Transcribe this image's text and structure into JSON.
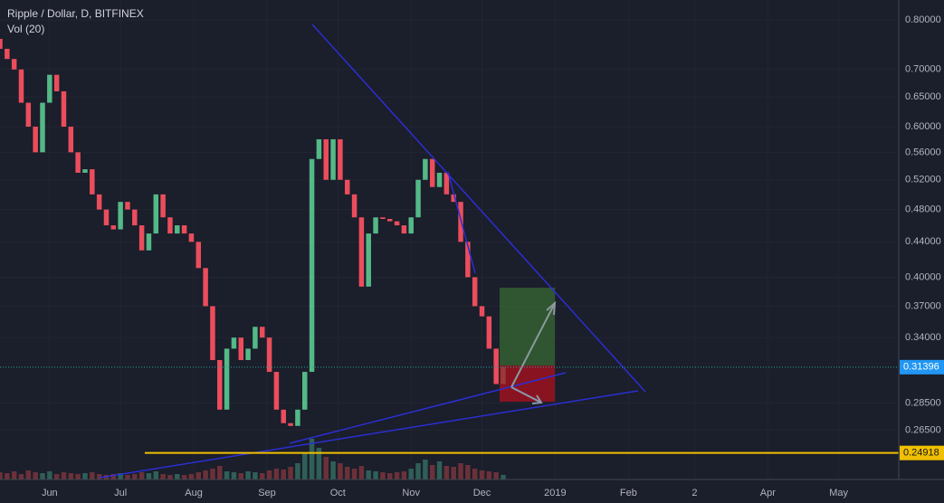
{
  "chart_data": {
    "type": "candlestick",
    "title": "Ripple / Dollar, D, BITFINEX",
    "subtitle": "Vol (20)",
    "log_scale": true,
    "up_color": "#53b987",
    "down_color": "#eb4d5c",
    "volume_up_color": "#2f5f57",
    "volume_down_color": "#6b3139",
    "categories": [
      null,
      null,
      null,
      null,
      null,
      null,
      null,
      null,
      null,
      null,
      null,
      null,
      null,
      null,
      null,
      null,
      null,
      null,
      null,
      null,
      null,
      null,
      null,
      null,
      null,
      null,
      null,
      null,
      null,
      null,
      null,
      null,
      null,
      null,
      null,
      null,
      null,
      null,
      null,
      null,
      null,
      null,
      null,
      null,
      null,
      null,
      null,
      null,
      null,
      null,
      null,
      null,
      null,
      null,
      null,
      null,
      null,
      null,
      null,
      null,
      null,
      null,
      null,
      null,
      null,
      null,
      null,
      null,
      null,
      null,
      null,
      null
    ],
    "open": 0.76,
    "values": [
      0.74,
      0.72,
      0.7,
      0.64,
      0.6,
      0.56,
      0.64,
      0.69,
      0.66,
      0.6,
      0.56,
      0.53,
      0.535,
      0.5,
      0.48,
      0.46,
      0.455,
      0.49,
      0.48,
      0.46,
      0.43,
      0.45,
      0.5,
      0.47,
      0.45,
      0.46,
      0.45,
      0.44,
      0.41,
      0.37,
      0.32,
      0.28,
      0.33,
      0.34,
      0.32,
      0.33,
      0.35,
      0.34,
      0.31,
      0.28,
      0.27,
      0.268,
      0.28,
      0.31,
      0.55,
      0.58,
      0.52,
      0.58,
      0.52,
      0.5,
      0.47,
      0.39,
      0.45,
      0.47,
      0.468,
      0.465,
      0.46,
      0.45,
      0.47,
      0.52,
      0.55,
      0.51,
      0.53,
      0.5,
      0.49,
      0.44,
      0.4,
      0.37,
      0.36,
      0.33,
      0.3,
      0.314
    ],
    "volumes": [
      8,
      7,
      9,
      6,
      10,
      8,
      7,
      9,
      6,
      8,
      7,
      6,
      7,
      8,
      6,
      5,
      6,
      7,
      5,
      6,
      8,
      7,
      9,
      6,
      5,
      6,
      5,
      6,
      8,
      10,
      12,
      15,
      9,
      8,
      7,
      9,
      8,
      7,
      10,
      12,
      11,
      14,
      18,
      30,
      45,
      35,
      25,
      20,
      18,
      14,
      12,
      15,
      10,
      9,
      8,
      7,
      8,
      9,
      12,
      18,
      22,
      16,
      20,
      15,
      14,
      18,
      16,
      12,
      10,
      9,
      8,
      5
    ],
    "xlim": [
      0,
      126.8
    ],
    "xticks": [
      {
        "value": 7,
        "label": "Jun"
      },
      {
        "value": 17,
        "label": "Jul"
      },
      {
        "value": 27.33,
        "label": "Aug"
      },
      {
        "value": 37.67,
        "label": "Sep"
      },
      {
        "value": 47.67,
        "label": "Oct"
      },
      {
        "value": 58,
        "label": "Nov"
      },
      {
        "value": 68,
        "label": "Dec"
      },
      {
        "value": 78.33,
        "label": "2019"
      },
      {
        "value": 88.67,
        "label": "Feb"
      },
      {
        "value": 98,
        "label": "2"
      },
      {
        "value": 108.33,
        "label": "Apr"
      },
      {
        "value": 118.33,
        "label": "May"
      }
    ],
    "ylim": [
      0.232,
      0.844
    ],
    "yticks": [
      {
        "value": 0.8,
        "label": "0.80000"
      },
      {
        "value": 0.7,
        "label": "0.70000"
      },
      {
        "value": 0.65,
        "label": "0.65000"
      },
      {
        "value": 0.6,
        "label": "0.60000"
      },
      {
        "value": 0.56,
        "label": "0.56000"
      },
      {
        "value": 0.52,
        "label": "0.52000"
      },
      {
        "value": 0.48,
        "label": "0.48000"
      },
      {
        "value": 0.44,
        "label": "0.44000"
      },
      {
        "value": 0.4,
        "label": "0.40000"
      },
      {
        "value": 0.37,
        "label": "0.37000"
      },
      {
        "value": 0.34,
        "label": "0.34000"
      },
      {
        "value": 0.285,
        "label": "0.28500"
      },
      {
        "value": 0.265,
        "label": "0.26500"
      }
    ],
    "last_price": 0.31396,
    "horizontal_line": 0.24918
  }
}
